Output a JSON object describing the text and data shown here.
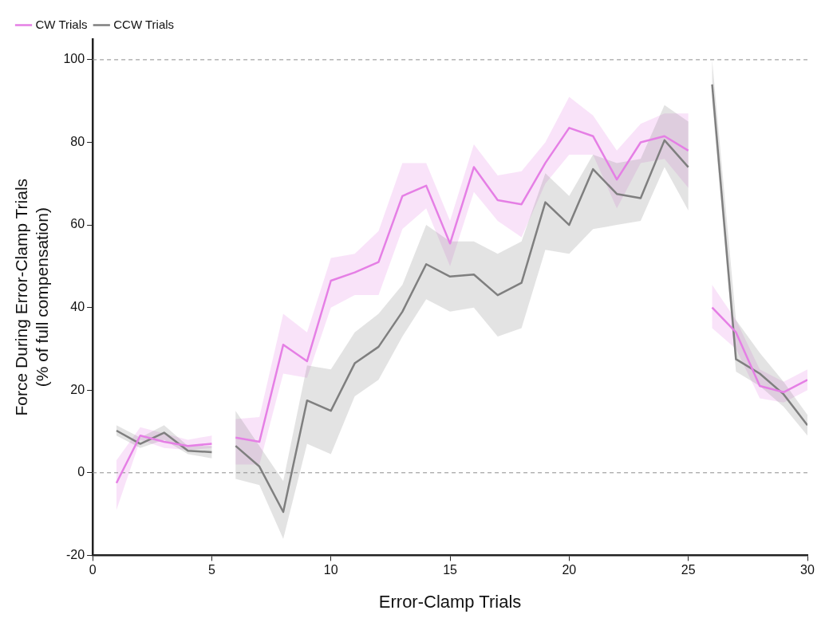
{
  "chart_data": {
    "type": "line",
    "xlabel": "Error-Clamp Trials",
    "ylabel": "Force During Error-Clamp Trials\n(% of full compensation)",
    "x": [
      1,
      2,
      3,
      4,
      5,
      5.5,
      6,
      7,
      8,
      9,
      10,
      11,
      12,
      13,
      14,
      15,
      16,
      17,
      18,
      19,
      20,
      21,
      22,
      23,
      24,
      25,
      25.5,
      26,
      27,
      28,
      29,
      30
    ],
    "xlim": [
      0,
      30
    ],
    "xticks": [
      0,
      5,
      10,
      15,
      20,
      25,
      30
    ],
    "ylim": [
      -20,
      105
    ],
    "yticks": [
      -20,
      0,
      20,
      40,
      60,
      80,
      100
    ],
    "legend": "top left",
    "grid": false,
    "marker": "none",
    "line_style": "solid",
    "ref_lines": [
      {
        "axis": "y",
        "value": 0,
        "color": "#8c8c8c",
        "line_style": "dashed"
      },
      {
        "axis": "y",
        "value": 100,
        "color": "#8c8c8c",
        "line_style": "dashed"
      }
    ],
    "series": [
      {
        "name": "CW Trials",
        "color": "#e57fe5",
        "values": [
          -2.5,
          9,
          7.5,
          6.5,
          7,
          null,
          8.5,
          7.5,
          31,
          27,
          46.5,
          48.5,
          51,
          67,
          69.5,
          55.5,
          74,
          66,
          65,
          75,
          83.5,
          81.5,
          71,
          80,
          81.5,
          78,
          null,
          40,
          34,
          21,
          19.5,
          22.5
        ],
        "lower": [
          -9,
          8,
          6,
          5.5,
          6,
          null,
          2,
          2,
          24,
          23,
          40,
          43,
          43,
          59,
          64,
          50,
          68,
          61,
          57,
          70,
          77,
          77,
          64,
          75,
          76,
          69,
          null,
          35,
          30,
          18,
          17,
          20
        ],
        "upper": [
          3,
          11,
          9.5,
          8,
          9,
          null,
          13,
          13.5,
          38.5,
          34,
          52,
          53,
          58.5,
          75,
          75,
          61,
          79.5,
          72,
          73,
          80,
          91,
          86.5,
          78,
          84.5,
          87,
          87,
          null,
          45.5,
          37,
          25,
          22,
          25
        ]
      },
      {
        "name": "CCW Trials",
        "color": "#7f7f7f",
        "values": [
          10.2,
          7,
          9.7,
          5.3,
          5,
          null,
          6.5,
          1.5,
          -9.5,
          17.5,
          15,
          26.5,
          30.5,
          39,
          50.5,
          47.5,
          48,
          43,
          46,
          65.5,
          60,
          73.5,
          67.5,
          66.5,
          80.5,
          74,
          null,
          94,
          27.5,
          24,
          19,
          11.5
        ],
        "lower": [
          9,
          6,
          8,
          4.5,
          3.5,
          null,
          -1.5,
          -3,
          -16,
          7,
          4.5,
          18.5,
          22.5,
          33,
          42,
          39,
          40,
          33,
          35,
          54,
          53,
          59,
          60,
          61,
          74,
          63.5,
          null,
          90,
          24.5,
          21,
          16,
          9
        ],
        "upper": [
          11.5,
          8.5,
          11.5,
          6.5,
          6.5,
          null,
          15,
          6.5,
          -2,
          26,
          25,
          34,
          38.5,
          45.5,
          60,
          56,
          56,
          53,
          56,
          72.5,
          67,
          77,
          75,
          76,
          89,
          85,
          null,
          100,
          37,
          29,
          22,
          14
        ]
      }
    ]
  }
}
